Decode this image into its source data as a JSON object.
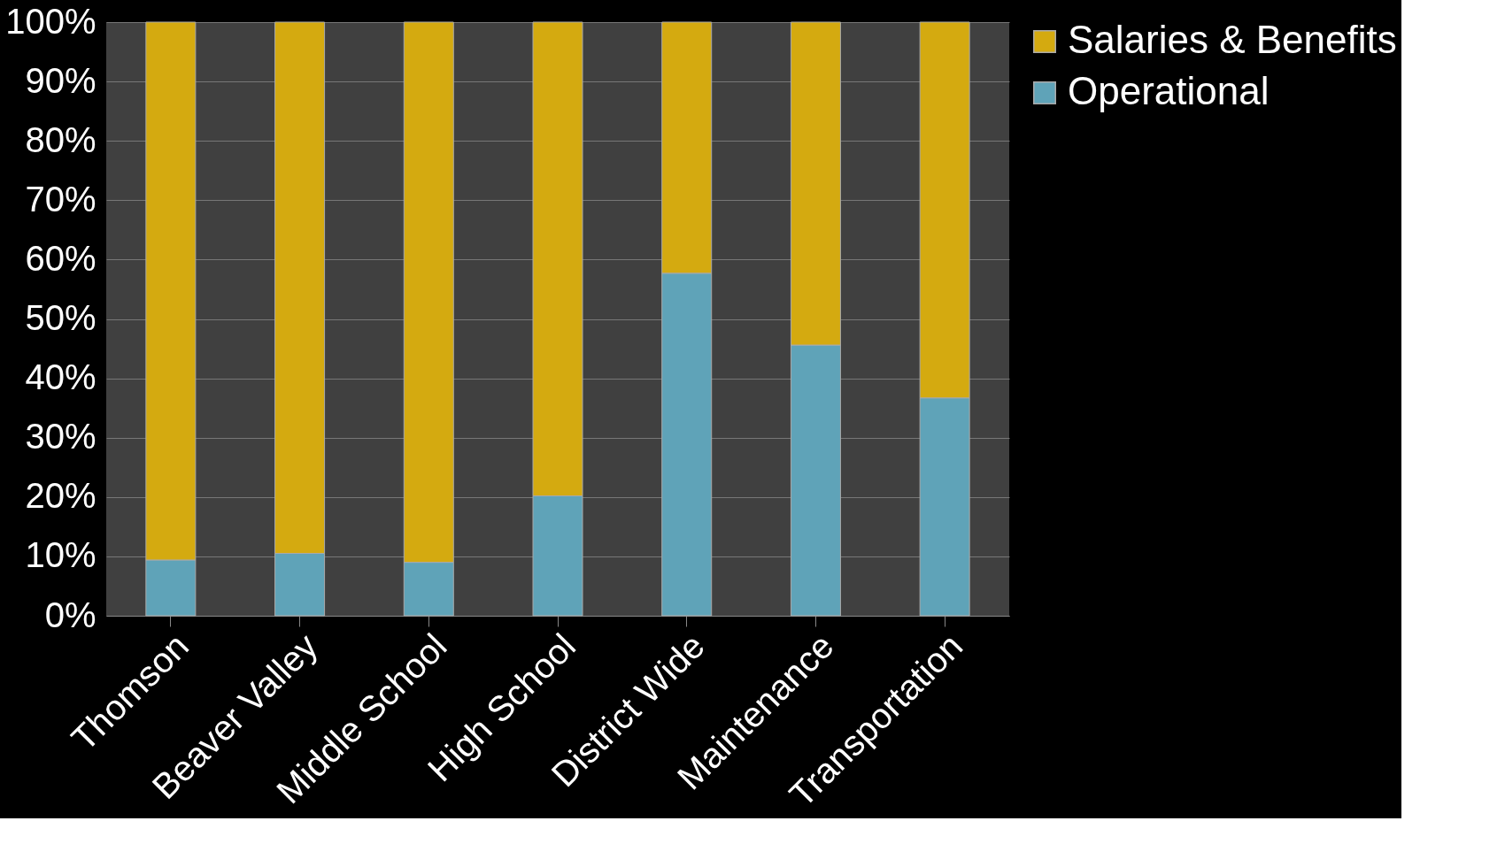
{
  "chart_data": {
    "type": "bar",
    "stacked": true,
    "categories": [
      "Thomson",
      "Beaver Valley",
      "Middle School",
      "High School",
      "District Wide",
      "Maintenance",
      "Transportation"
    ],
    "series": [
      {
        "name": "Operational",
        "color": "#5fa3b8",
        "values": [
          9.4,
          10.5,
          9.0,
          20.2,
          57.7,
          45.6,
          36.7
        ]
      },
      {
        "name": "Salaries & Benefits",
        "color": "#d4aa10",
        "values": [
          90.6,
          89.5,
          91.0,
          79.8,
          42.3,
          54.4,
          63.3
        ]
      }
    ],
    "ylim": [
      0,
      100
    ],
    "yticks": [
      {
        "value": 0,
        "label": "0%"
      },
      {
        "value": 10,
        "label": "10%"
      },
      {
        "value": 20,
        "label": "20%"
      },
      {
        "value": 30,
        "label": "30%"
      },
      {
        "value": 40,
        "label": "40%"
      },
      {
        "value": 50,
        "label": "50%"
      },
      {
        "value": 60,
        "label": "60%"
      },
      {
        "value": 70,
        "label": "70%"
      },
      {
        "value": 80,
        "label": "80%"
      },
      {
        "value": 90,
        "label": "90%"
      },
      {
        "value": 100,
        "label": "100%"
      }
    ],
    "grid": "y",
    "legend": "right"
  }
}
